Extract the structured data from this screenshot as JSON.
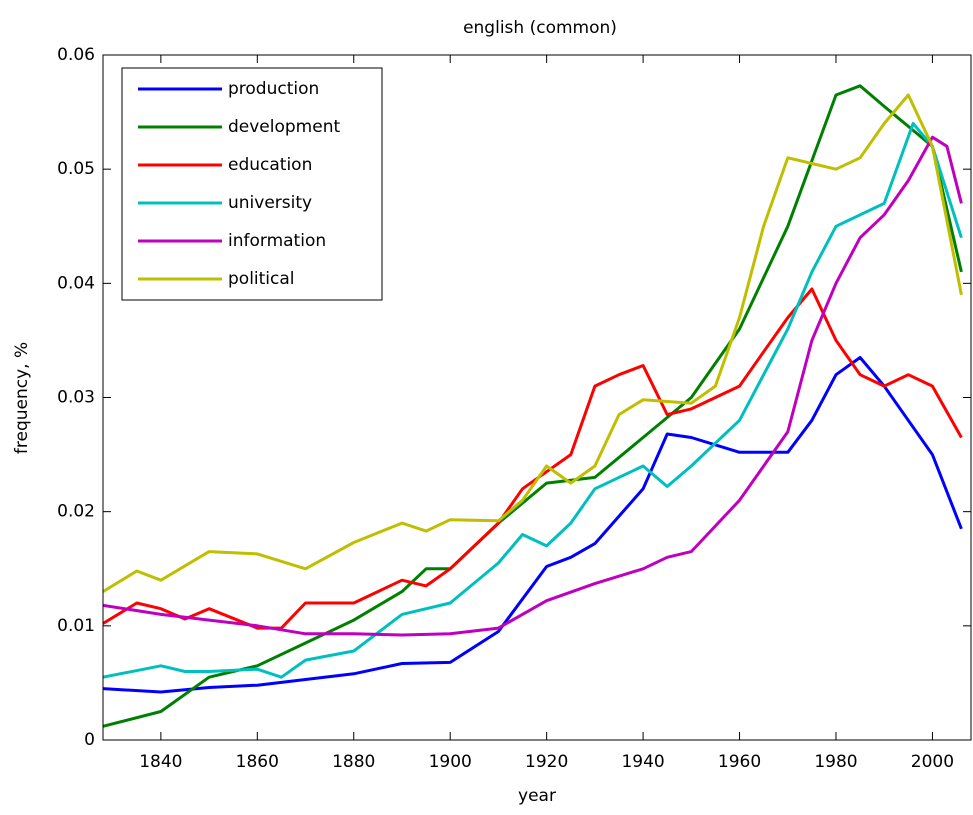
{
  "chart_data": {
    "type": "line",
    "title": "english (common)",
    "xlabel": "year",
    "ylabel": "frequency, %",
    "xlim": [
      1828,
      2008
    ],
    "ylim": [
      0,
      0.06
    ],
    "xticks": [
      1840,
      1860,
      1880,
      1900,
      1920,
      1940,
      1960,
      1980,
      2000
    ],
    "yticks": [
      0,
      0.01,
      0.02,
      0.03,
      0.04,
      0.05,
      0.06
    ],
    "grid": false,
    "legend": "upper left",
    "series": [
      {
        "name": "production",
        "color": "#0000ff",
        "x": [
          1828,
          1840,
          1850,
          1860,
          1870,
          1880,
          1890,
          1900,
          1910,
          1920,
          1925,
          1930,
          1940,
          1945,
          1950,
          1960,
          1970,
          1975,
          1980,
          1985,
          1990,
          2000,
          2006
        ],
        "values": [
          0.0045,
          0.0042,
          0.0046,
          0.0048,
          0.0053,
          0.0058,
          0.0067,
          0.0068,
          0.0095,
          0.0152,
          0.016,
          0.0172,
          0.022,
          0.0268,
          0.0265,
          0.0252,
          0.0252,
          0.028,
          0.032,
          0.0335,
          0.031,
          0.025,
          0.0185
        ]
      },
      {
        "name": "development",
        "color": "#008000",
        "x": [
          1828,
          1840,
          1850,
          1860,
          1870,
          1880,
          1890,
          1895,
          1900,
          1910,
          1920,
          1930,
          1940,
          1950,
          1960,
          1970,
          1980,
          1985,
          1990,
          2000,
          2006
        ],
        "values": [
          0.0012,
          0.0025,
          0.0055,
          0.0065,
          0.0085,
          0.0105,
          0.013,
          0.015,
          0.015,
          0.019,
          0.0225,
          0.023,
          0.0265,
          0.03,
          0.036,
          0.045,
          0.0565,
          0.0573,
          0.0555,
          0.052,
          0.041
        ]
      },
      {
        "name": "education",
        "color": "#ff0000",
        "x": [
          1828,
          1835,
          1840,
          1845,
          1850,
          1860,
          1865,
          1870,
          1880,
          1890,
          1895,
          1900,
          1910,
          1915,
          1920,
          1925,
          1930,
          1935,
          1940,
          1945,
          1950,
          1960,
          1965,
          1970,
          1975,
          1980,
          1985,
          1990,
          1995,
          2000,
          2006
        ],
        "values": [
          0.0102,
          0.012,
          0.0115,
          0.0106,
          0.0115,
          0.0098,
          0.0098,
          0.012,
          0.012,
          0.014,
          0.0135,
          0.015,
          0.019,
          0.022,
          0.0235,
          0.025,
          0.031,
          0.032,
          0.0328,
          0.0285,
          0.029,
          0.031,
          0.034,
          0.037,
          0.0395,
          0.035,
          0.032,
          0.031,
          0.032,
          0.031,
          0.0265
        ]
      },
      {
        "name": "university",
        "color": "#00bfbf",
        "x": [
          1828,
          1840,
          1845,
          1850,
          1860,
          1865,
          1870,
          1880,
          1890,
          1900,
          1910,
          1915,
          1920,
          1925,
          1930,
          1940,
          1945,
          1950,
          1960,
          1970,
          1975,
          1980,
          1990,
          1996,
          2000,
          2006
        ],
        "values": [
          0.0055,
          0.0065,
          0.006,
          0.006,
          0.0062,
          0.0055,
          0.007,
          0.0078,
          0.011,
          0.012,
          0.0155,
          0.018,
          0.017,
          0.019,
          0.022,
          0.024,
          0.0222,
          0.024,
          0.028,
          0.036,
          0.041,
          0.045,
          0.047,
          0.054,
          0.052,
          0.044
        ]
      },
      {
        "name": "information",
        "color": "#bf00bf",
        "x": [
          1828,
          1840,
          1850,
          1860,
          1870,
          1880,
          1890,
          1900,
          1910,
          1920,
          1930,
          1940,
          1945,
          1950,
          1960,
          1970,
          1975,
          1980,
          1985,
          1990,
          1995,
          2000,
          2003,
          2006
        ],
        "values": [
          0.0118,
          0.011,
          0.0105,
          0.01,
          0.0093,
          0.0093,
          0.0092,
          0.0093,
          0.0098,
          0.0122,
          0.0137,
          0.015,
          0.016,
          0.0165,
          0.021,
          0.027,
          0.035,
          0.04,
          0.044,
          0.046,
          0.049,
          0.0528,
          0.052,
          0.047
        ]
      },
      {
        "name": "political",
        "color": "#bfbf00",
        "x": [
          1828,
          1835,
          1840,
          1850,
          1860,
          1870,
          1880,
          1890,
          1895,
          1900,
          1910,
          1915,
          1920,
          1925,
          1930,
          1935,
          1940,
          1950,
          1955,
          1960,
          1965,
          1970,
          1975,
          1980,
          1985,
          1990,
          1995,
          2000,
          2006
        ],
        "values": [
          0.013,
          0.0148,
          0.014,
          0.0165,
          0.0163,
          0.015,
          0.0173,
          0.019,
          0.0183,
          0.0193,
          0.0192,
          0.021,
          0.024,
          0.0225,
          0.024,
          0.0285,
          0.0298,
          0.0295,
          0.031,
          0.037,
          0.045,
          0.051,
          0.0505,
          0.05,
          0.051,
          0.054,
          0.0565,
          0.052,
          0.039
        ]
      }
    ]
  }
}
